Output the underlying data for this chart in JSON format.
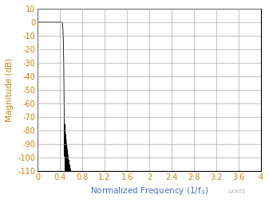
{
  "title": "",
  "xlabel": "Normalized Frequency (1/fₛ)",
  "ylabel": "Magnitude (dB)",
  "xlim": [
    0,
    4
  ],
  "ylim": [
    -110,
    10
  ],
  "xticks": [
    0,
    0.4,
    0.8,
    1.2,
    1.6,
    2.0,
    2.4,
    2.8,
    3.2,
    3.6,
    4.0
  ],
  "yticks": [
    10,
    0,
    -10,
    -20,
    -30,
    -40,
    -50,
    -60,
    -70,
    -80,
    -90,
    -100,
    -110
  ],
  "line_color": "#000000",
  "grid_color": "#aaaaaa",
  "axis_label_color": "#c8820a",
  "background_color": "#ffffff",
  "watermark": "LXX01",
  "xlabel_color": "#4472c4"
}
